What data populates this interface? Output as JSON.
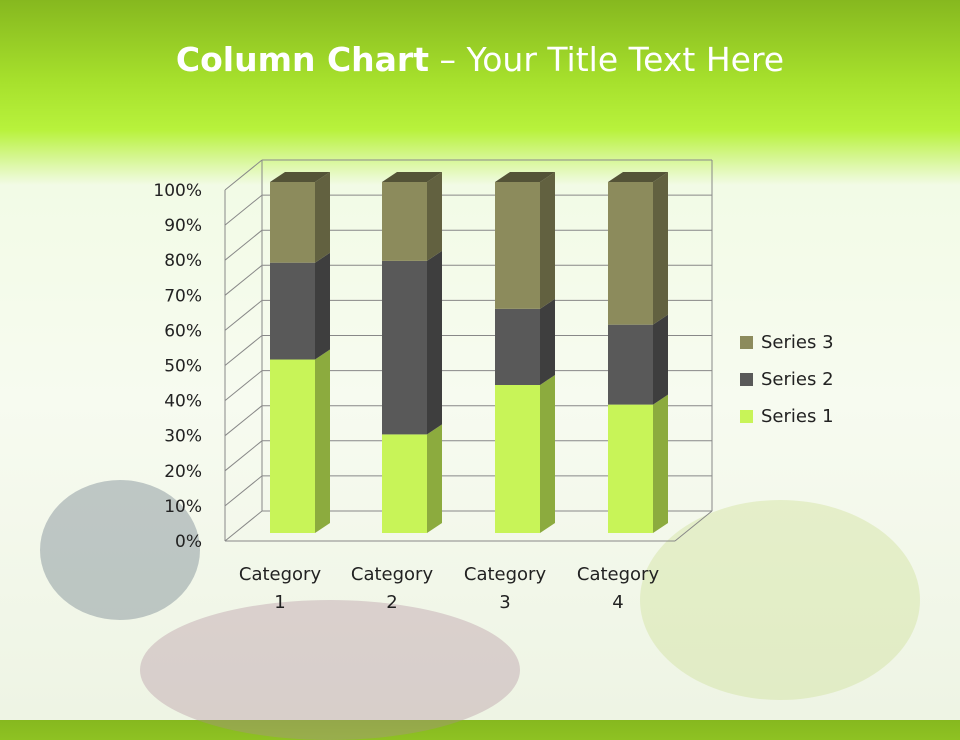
{
  "title": {
    "bold": "Column Chart",
    "rest": " – Your Title Text Here"
  },
  "chart_data": {
    "type": "bar",
    "stacking": "percent",
    "three_d": true,
    "categories": [
      "Category 1",
      "Category 2",
      "Category 3",
      "Category 4"
    ],
    "series": [
      {
        "name": "Series 1",
        "values": [
          4.3,
          2.5,
          3.5,
          4.5
        ],
        "color": "#c8f458"
      },
      {
        "name": "Series 2",
        "values": [
          2.4,
          4.4,
          1.8,
          2.8
        ],
        "color": "#595959"
      },
      {
        "name": "Series 3",
        "values": [
          2,
          2,
          3,
          5
        ],
        "color": "#8c8b5c"
      }
    ],
    "yticks": [
      "0%",
      "10%",
      "20%",
      "30%",
      "40%",
      "50%",
      "60%",
      "70%",
      "80%",
      "90%",
      "100%"
    ],
    "ylim": [
      0,
      100
    ],
    "grid": true,
    "legend": "right"
  }
}
